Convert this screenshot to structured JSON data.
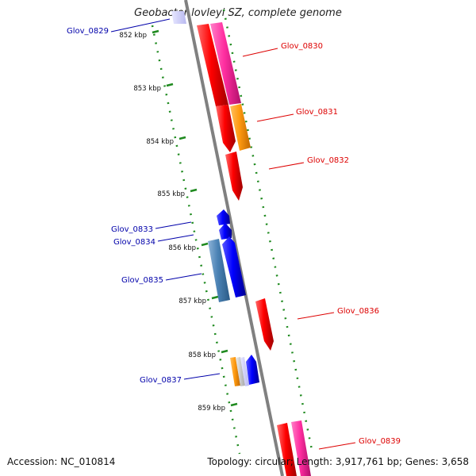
{
  "title": "Geobacter lovleyi SZ, complete genome",
  "footer": {
    "accession": "Accession: NC_010814",
    "topology": "Topology: circular; Length: 3,917,761 bp; Genes: 3,658"
  },
  "kbp_ticks": [
    "852 kbp",
    "853 kbp",
    "854 kbp",
    "855 kbp",
    "856 kbp",
    "857 kbp",
    "858 kbp",
    "859 kbp"
  ],
  "genes": [
    {
      "id": "Glov_0829",
      "strand": "minus",
      "label_color": "#0000aa"
    },
    {
      "id": "Glov_0830",
      "strand": "plus",
      "label_color": "#dd0000"
    },
    {
      "id": "Glov_0831",
      "strand": "plus",
      "label_color": "#dd0000"
    },
    {
      "id": "Glov_0832",
      "strand": "plus",
      "label_color": "#dd0000"
    },
    {
      "id": "Glov_0833",
      "strand": "minus",
      "label_color": "#0000aa"
    },
    {
      "id": "Glov_0834",
      "strand": "minus",
      "label_color": "#0000aa"
    },
    {
      "id": "Glov_0835",
      "strand": "minus",
      "label_color": "#0000aa"
    },
    {
      "id": "Glov_0836",
      "strand": "plus",
      "label_color": "#dd0000"
    },
    {
      "id": "Glov_0837",
      "strand": "minus",
      "label_color": "#0000aa"
    },
    {
      "id": "Glov_0839",
      "strand": "plus",
      "label_color": "#dd0000"
    }
  ],
  "colors": {
    "backbone": "#808080",
    "ruler": "#1f8a1f",
    "plus_label": "#dd0000",
    "minus_label": "#0000aa"
  }
}
